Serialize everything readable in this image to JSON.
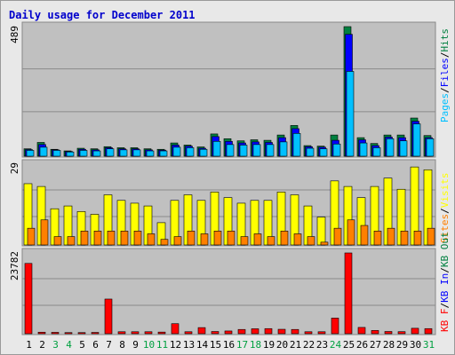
{
  "title": "Daily usage for December 2011",
  "colors": {
    "pages": "#00c0ff",
    "files": "#0000ff",
    "hits": "#008040",
    "sites": "#ff8000",
    "visits": "#ffff00",
    "kbf": "#ff0000",
    "kbin": "#0000ff",
    "kbout": "#008040",
    "weekday_label": "#000000",
    "weekend_label": "#00a040",
    "panel_bg": "#c0c0c0"
  },
  "chart_data": [
    {
      "type": "bar",
      "panel": "hits-files-pages",
      "ymax_label": "489",
      "ymax": 489,
      "legend": [
        "Pages",
        "Files",
        "Hits"
      ],
      "categories": [
        "1",
        "2",
        "3",
        "4",
        "5",
        "6",
        "7",
        "8",
        "9",
        "10",
        "11",
        "12",
        "13",
        "14",
        "15",
        "16",
        "17",
        "18",
        "19",
        "20",
        "21",
        "22",
        "23",
        "24",
        "25",
        "26",
        "27",
        "28",
        "29",
        "30",
        "31"
      ],
      "series": [
        {
          "name": "Hits",
          "values": [
            28,
            52,
            26,
            20,
            30,
            28,
            36,
            32,
            32,
            28,
            26,
            50,
            42,
            35,
            84,
            66,
            58,
            62,
            60,
            80,
            116,
            40,
            38,
            80,
            489,
            70,
            48,
            80,
            80,
            144,
            78
          ]
        },
        {
          "name": "Files",
          "values": [
            25,
            44,
            24,
            18,
            26,
            24,
            32,
            28,
            28,
            24,
            23,
            42,
            38,
            30,
            74,
            56,
            50,
            54,
            52,
            70,
            104,
            36,
            34,
            60,
            460,
            62,
            40,
            72,
            70,
            132,
            70
          ]
        },
        {
          "name": "Pages",
          "values": [
            22,
            34,
            22,
            16,
            22,
            20,
            28,
            24,
            24,
            20,
            20,
            34,
            32,
            26,
            56,
            44,
            42,
            44,
            44,
            54,
            86,
            30,
            28,
            46,
            320,
            50,
            32,
            66,
            58,
            122,
            66
          ]
        }
      ]
    },
    {
      "type": "bar",
      "panel": "visits-sites",
      "ymax_label": "29",
      "ymax": 29,
      "legend": [
        "Sites",
        "Visits"
      ],
      "categories": [
        "1",
        "2",
        "3",
        "4",
        "5",
        "6",
        "7",
        "8",
        "9",
        "10",
        "11",
        "12",
        "13",
        "14",
        "15",
        "16",
        "17",
        "18",
        "19",
        "20",
        "21",
        "22",
        "23",
        "24",
        "25",
        "26",
        "27",
        "28",
        "29",
        "30",
        "31"
      ],
      "series": [
        {
          "name": "Visits",
          "values": [
            22,
            21,
            13,
            14,
            12,
            11,
            18,
            16,
            15,
            14,
            8,
            16,
            18,
            16,
            19,
            17,
            15,
            16,
            16,
            19,
            18,
            14,
            10,
            23,
            21,
            17,
            21,
            24,
            20,
            28,
            27
          ]
        },
        {
          "name": "Sites",
          "values": [
            6,
            9,
            3,
            3,
            5,
            5,
            5,
            5,
            5,
            4,
            2,
            3,
            5,
            4,
            5,
            5,
            3,
            4,
            3,
            5,
            4,
            3,
            1,
            6,
            9,
            7,
            5,
            6,
            5,
            5,
            6
          ]
        }
      ]
    },
    {
      "type": "bar",
      "panel": "kbytes",
      "ymax_label": "23782",
      "ymax": 23782,
      "legend": [
        "KB F",
        "KB In",
        "KB Out"
      ],
      "categories": [
        "1",
        "2",
        "3",
        "4",
        "5",
        "6",
        "7",
        "8",
        "9",
        "10",
        "11",
        "12",
        "13",
        "14",
        "15",
        "16",
        "17",
        "18",
        "19",
        "20",
        "21",
        "22",
        "23",
        "24",
        "25",
        "26",
        "27",
        "28",
        "29",
        "30",
        "31"
      ],
      "series": [
        {
          "name": "KB F",
          "values": [
            20700,
            450,
            400,
            330,
            330,
            380,
            10200,
            580,
            580,
            580,
            480,
            2950,
            580,
            1800,
            650,
            800,
            1250,
            1450,
            1500,
            1300,
            1250,
            580,
            580,
            4600,
            23782,
            1850,
            950,
            650,
            600,
            1600,
            1500
          ]
        }
      ],
      "weekend_days": [
        3,
        4,
        10,
        11,
        17,
        18,
        24,
        31
      ]
    }
  ]
}
